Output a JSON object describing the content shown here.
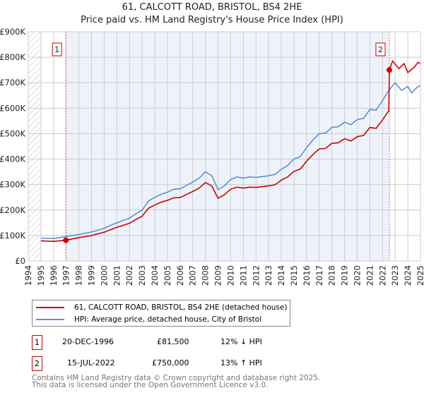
{
  "chart_data": {
    "type": "line",
    "title": "61, CALCOTT ROAD, BRISTOL, BS4 2HE",
    "subtitle": "Price paid vs. HM Land Registry's House Price Index (HPI)",
    "xlim": [
      1994,
      2025
    ],
    "ylim": [
      0,
      900000
    ],
    "x_ticks": [
      "1994",
      "1995",
      "1996",
      "1997",
      "1998",
      "1999",
      "2000",
      "2001",
      "2002",
      "2003",
      "2004",
      "2005",
      "2006",
      "2007",
      "2008",
      "2009",
      "2010",
      "2011",
      "2012",
      "2013",
      "2014",
      "2015",
      "2016",
      "2017",
      "2018",
      "2019",
      "2020",
      "2021",
      "2022",
      "2023",
      "2024",
      "2025"
    ],
    "y_ticks": [
      {
        "v": 0,
        "l": "£0"
      },
      {
        "v": 100000,
        "l": "£100K"
      },
      {
        "v": 200000,
        "l": "£200K"
      },
      {
        "v": 300000,
        "l": "£300K"
      },
      {
        "v": 400000,
        "l": "£400K"
      },
      {
        "v": 500000,
        "l": "£500K"
      },
      {
        "v": 600000,
        "l": "£600K"
      },
      {
        "v": 700000,
        "l": "£700K"
      },
      {
        "v": 800000,
        "l": "£800K"
      },
      {
        "v": 900000,
        "l": "£900K"
      }
    ],
    "grid": true,
    "series": [
      {
        "name": "61, CALCOTT ROAD, BRISTOL, BS4 2HE (detached house)",
        "color": "#cc0000",
        "points": [
          [
            1995,
            79
          ],
          [
            1996,
            77
          ],
          [
            1996.97,
            81.5
          ],
          [
            1998,
            91.5
          ],
          [
            1999,
            100
          ],
          [
            2000,
            113
          ],
          [
            2000.5,
            123
          ],
          [
            2001,
            132
          ],
          [
            2002,
            148
          ],
          [
            2002.5,
            163
          ],
          [
            2003,
            176
          ],
          [
            2003.5,
            207
          ],
          [
            2004,
            220
          ],
          [
            2004.5,
            231
          ],
          [
            2005,
            238
          ],
          [
            2005.5,
            248
          ],
          [
            2006,
            249
          ],
          [
            2007,
            273
          ],
          [
            2007.5,
            286
          ],
          [
            2008,
            308
          ],
          [
            2008.5,
            295
          ],
          [
            2009,
            246
          ],
          [
            2009.5,
            260
          ],
          [
            2010,
            282
          ],
          [
            2010.5,
            290
          ],
          [
            2011,
            286
          ],
          [
            2011.5,
            290
          ],
          [
            2012,
            289
          ],
          [
            2013,
            295
          ],
          [
            2013.5,
            299
          ],
          [
            2014,
            317
          ],
          [
            2014.5,
            330
          ],
          [
            2015,
            352
          ],
          [
            2015.5,
            361
          ],
          [
            2016,
            392
          ],
          [
            2016.5,
            418
          ],
          [
            2017,
            440
          ],
          [
            2017.5,
            442
          ],
          [
            2018,
            462
          ],
          [
            2018.5,
            464
          ],
          [
            2019,
            480
          ],
          [
            2019.5,
            471
          ],
          [
            2020,
            488
          ],
          [
            2020.5,
            493
          ],
          [
            2021,
            524
          ],
          [
            2021.5,
            521
          ],
          [
            2022,
            554
          ],
          [
            2022.5,
            590
          ],
          [
            2022.54,
            750
          ],
          [
            2022.8,
            785
          ],
          [
            2023.3,
            755
          ],
          [
            2023.7,
            775
          ],
          [
            2024,
            740
          ],
          [
            2024.5,
            760
          ],
          [
            2024.8,
            780
          ],
          [
            2025,
            775
          ]
        ]
      },
      {
        "name": "HPI: Average price, detached house, City of Bristol",
        "color": "#5b8fd4",
        "points": [
          [
            1995,
            90
          ],
          [
            1996,
            88
          ],
          [
            1997,
            96
          ],
          [
            1998,
            104
          ],
          [
            1999,
            114
          ],
          [
            2000,
            128
          ],
          [
            2000.5,
            140
          ],
          [
            2001,
            150
          ],
          [
            2002,
            168
          ],
          [
            2002.5,
            185
          ],
          [
            2003,
            200
          ],
          [
            2003.5,
            235
          ],
          [
            2004,
            250
          ],
          [
            2004.5,
            262
          ],
          [
            2005,
            270
          ],
          [
            2005.5,
            282
          ],
          [
            2006,
            283
          ],
          [
            2007,
            310
          ],
          [
            2007.5,
            325
          ],
          [
            2008,
            350
          ],
          [
            2008.5,
            335
          ],
          [
            2009,
            280
          ],
          [
            2009.5,
            295
          ],
          [
            2010,
            320
          ],
          [
            2010.5,
            330
          ],
          [
            2011,
            325
          ],
          [
            2011.5,
            330
          ],
          [
            2012,
            328
          ],
          [
            2013,
            335
          ],
          [
            2013.5,
            340
          ],
          [
            2014,
            360
          ],
          [
            2014.5,
            375
          ],
          [
            2015,
            400
          ],
          [
            2015.5,
            410
          ],
          [
            2016,
            445
          ],
          [
            2016.5,
            475
          ],
          [
            2017,
            500
          ],
          [
            2017.5,
            502
          ],
          [
            2018,
            525
          ],
          [
            2018.5,
            527
          ],
          [
            2019,
            545
          ],
          [
            2019.5,
            535
          ],
          [
            2020,
            555
          ],
          [
            2020.5,
            560
          ],
          [
            2021,
            595
          ],
          [
            2021.5,
            592
          ],
          [
            2022,
            630
          ],
          [
            2022.5,
            670
          ],
          [
            2023,
            700
          ],
          [
            2023.5,
            670
          ],
          [
            2024,
            685
          ],
          [
            2024.3,
            660
          ],
          [
            2024.7,
            680
          ],
          [
            2025,
            690
          ]
        ]
      }
    ],
    "sales": [
      {
        "label": "1",
        "x": 1996.97,
        "price": 81500,
        "date": "20-DEC-1996",
        "price_text": "£81,500",
        "hpi": "12% ↓ HPI"
      },
      {
        "label": "2",
        "x": 2022.54,
        "price": 750000,
        "date": "15-JUL-2022",
        "price_text": "£750,000",
        "hpi": "13% ↑ HPI"
      }
    ],
    "legend_placement": "below"
  },
  "footer": {
    "line1": "Contains HM Land Registry data © Crown copyright and database right 2025.",
    "line2": "This data is licensed under the Open Government Licence v3.0."
  }
}
